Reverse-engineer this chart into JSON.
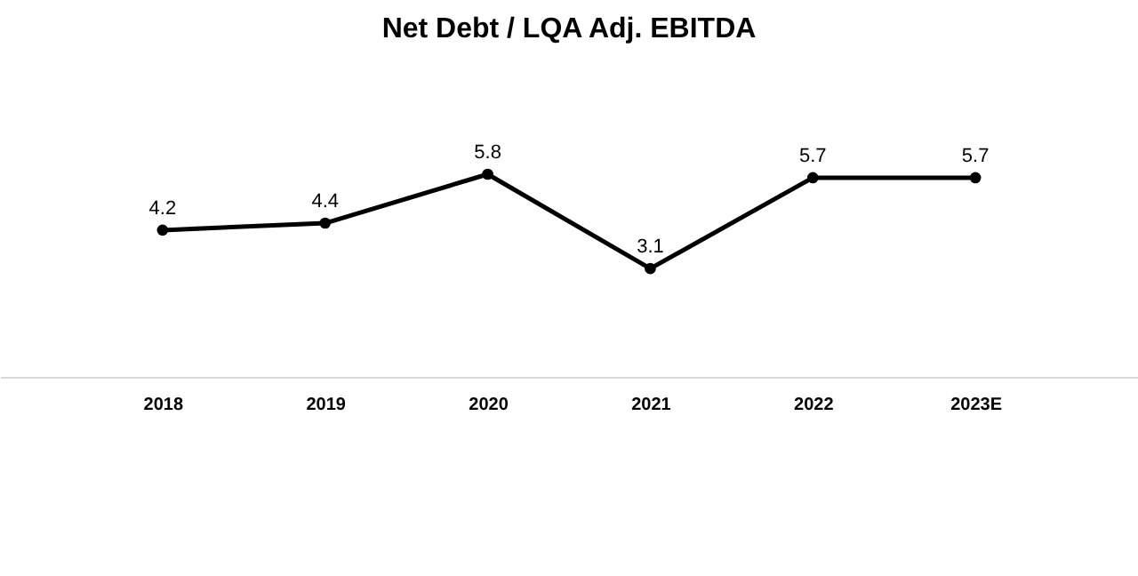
{
  "chart_data": {
    "type": "line",
    "title": "Net Debt / LQA Adj. EBITDA",
    "categories": [
      "2018",
      "2019",
      "2020",
      "2021",
      "2022",
      "2023E"
    ],
    "series": [
      {
        "color": "#000000",
        "values": [
          4.2,
          4.4,
          5.8,
          3.1,
          5.7,
          5.7
        ]
      }
    ],
    "tick_labels": "x",
    "grid": false,
    "marker": "circle",
    "line_style": "solid",
    "data_labels": true
  }
}
